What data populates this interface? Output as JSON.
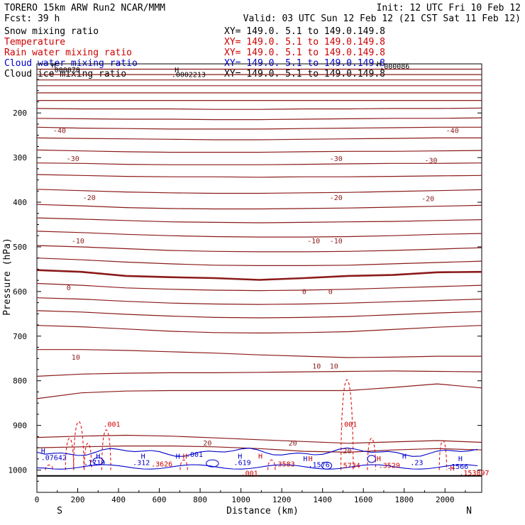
{
  "header": {
    "model": "TORERO  15km ARW   Run2    NCAR/MMM",
    "init": "Init: 12 UTC Fri 10 Feb 12",
    "fcst": "Fcst:   39 h",
    "valid": "Valid: 03 UTC Sun 12 Feb 12 (21 CST Sat 11 Feb 12)"
  },
  "legend": [
    {
      "label": "Snow mixing ratio",
      "xy": "XY= 149.0.  5.1 to 149.0.149.8",
      "color": "#000000",
      "xy_color": "#000000"
    },
    {
      "label": "Temperature",
      "xy": "XY= 149.0.  5.1 to 149.0.149.8",
      "color": "#cc0000",
      "xy_color": "#cc0000"
    },
    {
      "label": "Rain water mixing ratio",
      "xy": "XY= 149.0.  5.1 to 149.0.149.8",
      "color": "#cc0000",
      "xy_color": "#cc0000"
    },
    {
      "label": "Cloud water mixing ratio",
      "xy": "XY= 149.0.  5.1 to 149.0.149.8",
      "color": "#0000cc",
      "xy_color": "#0000cc"
    },
    {
      "label": "Cloud ice mixing ratio",
      "xy": "XY= 149.0.  5.1 to 149.0.149.8",
      "color": "#000000",
      "xy_color": "#000000"
    }
  ],
  "chart_data": {
    "type": "line",
    "xlabel": "Distance (km)",
    "ylabel": "Pressure (hPa)",
    "xlim": [
      0,
      2180
    ],
    "ylim": [
      1050,
      90
    ],
    "xticks": [
      "0",
      "200",
      "400",
      "600",
      "800",
      "1000",
      "1200",
      "1400",
      "1600",
      "1800",
      "2000"
    ],
    "yticks": [
      "200",
      "300",
      "400",
      "500",
      "600",
      "700",
      "800",
      "900",
      "1000"
    ],
    "left_end_label": "S",
    "right_end_label": "N",
    "temperature_isotherms": {
      "color": "#8b1a1a",
      "lines": [
        {
          "p": [
            102,
            102,
            102,
            102,
            102,
            102,
            102,
            102,
            102,
            102,
            102
          ]
        },
        {
          "p": [
            114,
            114,
            114,
            114,
            114,
            114,
            114,
            114,
            114,
            114,
            114
          ]
        },
        {
          "p": [
            126,
            126,
            126,
            126,
            126,
            126,
            126,
            126,
            126,
            126,
            126
          ]
        },
        {
          "p": [
            139,
            139,
            139,
            139,
            139,
            139,
            139,
            139,
            139,
            139,
            139
          ]
        },
        {
          "p": [
            155,
            155,
            155,
            155,
            155,
            155,
            155,
            155,
            155,
            155,
            155
          ]
        },
        {
          "p": [
            172,
            172,
            172,
            172,
            172,
            172,
            172,
            172,
            172,
            172,
            172
          ]
        },
        {
          "p": [
            190,
            191,
            191,
            191,
            192,
            192,
            191,
            191,
            190,
            190,
            189
          ]
        },
        {
          "p": [
            212,
            213,
            214,
            214,
            215,
            215,
            214,
            213,
            212,
            212,
            211
          ]
        },
        {
          "p": [
            232,
            234,
            235,
            236,
            236,
            236,
            235,
            234,
            233,
            232,
            232
          ]
        },
        {
          "p": [
            256,
            257,
            258,
            259,
            260,
            260,
            259,
            258,
            257,
            256,
            256
          ]
        },
        {
          "p": [
            283,
            285,
            287,
            288,
            288,
            288,
            287,
            286,
            286,
            285,
            284
          ]
        },
        {
          "p": [
            312,
            313,
            315,
            316,
            316,
            316,
            315,
            314,
            313,
            313,
            312
          ]
        },
        {
          "p": [
            338,
            340,
            342,
            343,
            343,
            344,
            343,
            343,
            342,
            341,
            340
          ]
        },
        {
          "p": [
            371,
            374,
            377,
            379,
            380,
            380,
            379,
            378,
            376,
            374,
            372
          ]
        },
        {
          "p": [
            405,
            408,
            412,
            414,
            415,
            415,
            414,
            413,
            411,
            409,
            407
          ]
        },
        {
          "p": [
            435,
            438,
            441,
            444,
            445,
            446,
            445,
            444,
            443,
            441,
            439
          ]
        },
        {
          "p": [
            465,
            468,
            472,
            475,
            477,
            478,
            478,
            477,
            475,
            472,
            470
          ]
        },
        {
          "p": [
            497,
            500,
            504,
            508,
            510,
            511,
            511,
            510,
            508,
            505,
            502
          ]
        },
        {
          "p": [
            525,
            529,
            534,
            538,
            541,
            542,
            542,
            541,
            538,
            535,
            532
          ]
        },
        {
          "p": [
            582,
            586,
            592,
            595,
            597,
            598,
            597,
            595,
            592,
            589,
            586
          ]
        },
        {
          "p": [
            614,
            617,
            622,
            626,
            628,
            629,
            628,
            626,
            623,
            620,
            617
          ]
        },
        {
          "p": [
            643,
            646,
            651,
            655,
            658,
            659,
            658,
            656,
            652,
            648,
            645
          ]
        },
        {
          "p": [
            676,
            679,
            684,
            689,
            692,
            693,
            692,
            690,
            685,
            680,
            676
          ]
        },
        {
          "p": [
            730,
            730,
            732,
            735,
            738,
            742,
            745,
            748,
            747,
            745,
            745
          ]
        },
        {
          "p": [
            790,
            785,
            783,
            782,
            782,
            781,
            780,
            779,
            778,
            779,
            780
          ]
        },
        {
          "p": [
            840,
            827,
            823,
            822,
            822,
            822,
            822,
            822,
            815,
            807,
            816
          ]
        },
        {
          "p": [
            927,
            924,
            922,
            924,
            928,
            932,
            936,
            940,
            937,
            934,
            938
          ]
        },
        {
          "p": [
            950,
            948,
            946,
            946,
            948,
            952,
            958,
            960,
            955,
            952,
            955
          ]
        }
      ],
      "zero_line": {
        "p": [
          552,
          556,
          565,
          568,
          570,
          574,
          570,
          565,
          563,
          557,
          556
        ]
      },
      "labels": [
        {
          "x": 80,
          "p": 240,
          "text": "-40"
        },
        {
          "x": 2005,
          "p": 240,
          "text": "-40"
        },
        {
          "x": 145,
          "p": 303,
          "text": "-30"
        },
        {
          "x": 1435,
          "p": 303,
          "text": "-30"
        },
        {
          "x": 1900,
          "p": 307,
          "text": "-30"
        },
        {
          "x": 225,
          "p": 390,
          "text": "-20"
        },
        {
          "x": 1435,
          "p": 390,
          "text": "-20"
        },
        {
          "x": 1885,
          "p": 393,
          "text": "-20"
        },
        {
          "x": 170,
          "p": 487,
          "text": "-10"
        },
        {
          "x": 1325,
          "p": 487,
          "text": "-10"
        },
        {
          "x": 1435,
          "p": 487,
          "text": "-10"
        },
        {
          "x": 145,
          "p": 592,
          "text": "0"
        },
        {
          "x": 1300,
          "p": 601,
          "text": "0"
        },
        {
          "x": 1428,
          "p": 601,
          "text": "0"
        },
        {
          "x": 170,
          "p": 748,
          "text": "10"
        },
        {
          "x": 1350,
          "p": 768,
          "text": "10"
        },
        {
          "x": 1435,
          "p": 768,
          "text": "10"
        },
        {
          "x": 815,
          "p": 940,
          "text": "20"
        },
        {
          "x": 1233,
          "p": 940,
          "text": "20"
        },
        {
          "x": 1500,
          "p": 958,
          "text": "20"
        }
      ]
    },
    "rain_labels": [
      {
        "x": 325,
        "p": 898,
        "text": ".001"
      },
      {
        "x": 1485,
        "p": 898,
        "text": ".001"
      },
      {
        "x": 1000,
        "p": 1008,
        "text": ".001"
      },
      {
        "x": 560,
        "p": 987,
        "text": ".3626"
      },
      {
        "x": 1160,
        "p": 987,
        "text": ".3583"
      },
      {
        "x": 1480,
        "p": 990,
        "text": ".5734"
      },
      {
        "x": 1675,
        "p": 990,
        "text": ".3529"
      },
      {
        "x": 2070,
        "p": 1007,
        "text": ".153897"
      }
    ],
    "cloud_water_labels": [
      {
        "x": 20,
        "p": 973,
        "text": ".07642"
      },
      {
        "x": 230,
        "p": 984,
        "text": ".1719"
      },
      {
        "x": 470,
        "p": 984,
        "text": ".312"
      },
      {
        "x": 730,
        "p": 966,
        "text": ".001"
      },
      {
        "x": 965,
        "p": 984,
        "text": ".619"
      },
      {
        "x": 1330,
        "p": 989,
        "text": ".1576"
      },
      {
        "x": 1830,
        "p": 984,
        "text": ".23"
      },
      {
        "x": 2010,
        "p": 993,
        "text": ".1566"
      }
    ],
    "black_labels": [
      {
        "x": 65,
        "p": 104,
        "text": ".000078"
      },
      {
        "x": 660,
        "p": 115,
        "text": ".0002213"
      },
      {
        "x": 1680,
        "p": 96,
        "text": ".000086"
      }
    ],
    "h_marks": [
      {
        "x": 72,
        "p": 94,
        "color": "#000000"
      },
      {
        "x": 675,
        "p": 104,
        "color": "#000000"
      },
      {
        "x": 1666,
        "p": 91,
        "color": "#000000"
      },
      {
        "x": 20,
        "p": 958,
        "color": "#0000cc"
      },
      {
        "x": 290,
        "p": 970,
        "color": "#0000cc"
      },
      {
        "x": 510,
        "p": 970,
        "color": "#0000cc"
      },
      {
        "x": 680,
        "p": 970,
        "color": "#0000cc"
      },
      {
        "x": 715,
        "p": 970,
        "color": "#cc0000"
      },
      {
        "x": 985,
        "p": 970,
        "color": "#0000cc"
      },
      {
        "x": 1085,
        "p": 970,
        "color": "#cc0000"
      },
      {
        "x": 1305,
        "p": 975,
        "color": "#0000cc"
      },
      {
        "x": 1330,
        "p": 975,
        "color": "#cc0000"
      },
      {
        "x": 1665,
        "p": 975,
        "color": "#cc0000"
      },
      {
        "x": 1790,
        "p": 970,
        "color": "#0000cc"
      },
      {
        "x": 2065,
        "p": 975,
        "color": "#0000cc"
      },
      {
        "x": 2025,
        "p": 997,
        "color": "#cc0000"
      }
    ]
  }
}
